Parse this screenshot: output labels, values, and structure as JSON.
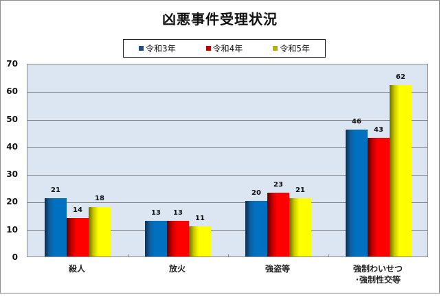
{
  "chart_data": {
    "type": "bar",
    "title": "凶悪事件受理状況",
    "categories": [
      "殺人",
      "放火",
      "強盗等",
      "強制わいせつ・強制性交等"
    ],
    "category_lines": [
      [
        "殺人"
      ],
      [
        "放火"
      ],
      [
        "強盗等"
      ],
      [
        "強制わいせつ",
        "･強制性交等"
      ]
    ],
    "series": [
      {
        "name": "令和3年",
        "color": "#0070c0",
        "values": [
          21,
          13,
          20,
          46
        ]
      },
      {
        "name": "令和4年",
        "color": "#ff0000",
        "values": [
          14,
          13,
          23,
          43
        ]
      },
      {
        "name": "令和5年",
        "color": "#ffff00",
        "values": [
          18,
          11,
          21,
          62
        ]
      }
    ],
    "xlabel": "",
    "ylabel": "",
    "ylim": [
      0,
      70
    ],
    "yticks": [
      0,
      10,
      20,
      30,
      40,
      50,
      60,
      70
    ],
    "grid": true,
    "legend_position": "top",
    "data_labels": true
  },
  "legend": {
    "items": [
      {
        "label": "令和3年",
        "swatch": "#1f4e79"
      },
      {
        "label": "令和4年",
        "swatch": "#c00000"
      },
      {
        "label": "令和5年",
        "swatch": "#b5b500"
      }
    ]
  }
}
